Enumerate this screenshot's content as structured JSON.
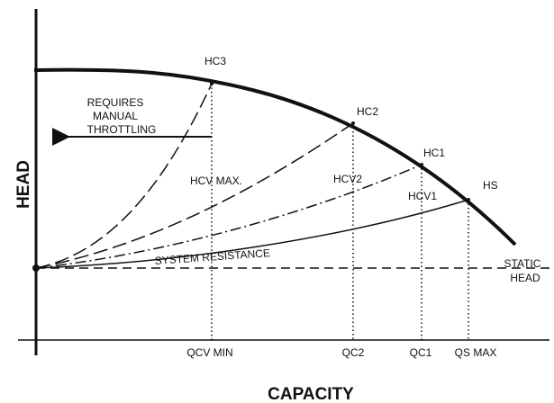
{
  "axes": {
    "y_label": "HEAD",
    "x_label": "CAPACITY"
  },
  "curves": {
    "hc3": "HC3",
    "hc2": "HC2",
    "hc1": "HC1",
    "hs": "HS",
    "system_resistance": "SYSTEM RESISTANCE",
    "static_head": [
      "STATIC",
      "HEAD"
    ]
  },
  "note": [
    "REQUIRES",
    "MANUAL",
    "THROTTLING"
  ],
  "heads": {
    "hcv_max": "HCV MAX.",
    "hcv2": "HCV2",
    "hcv1": "HCV1"
  },
  "capacities": {
    "qcv_min": "QCV MIN",
    "qc2": "QC2",
    "qc1": "QC1",
    "qs_max": "QS MAX"
  }
}
